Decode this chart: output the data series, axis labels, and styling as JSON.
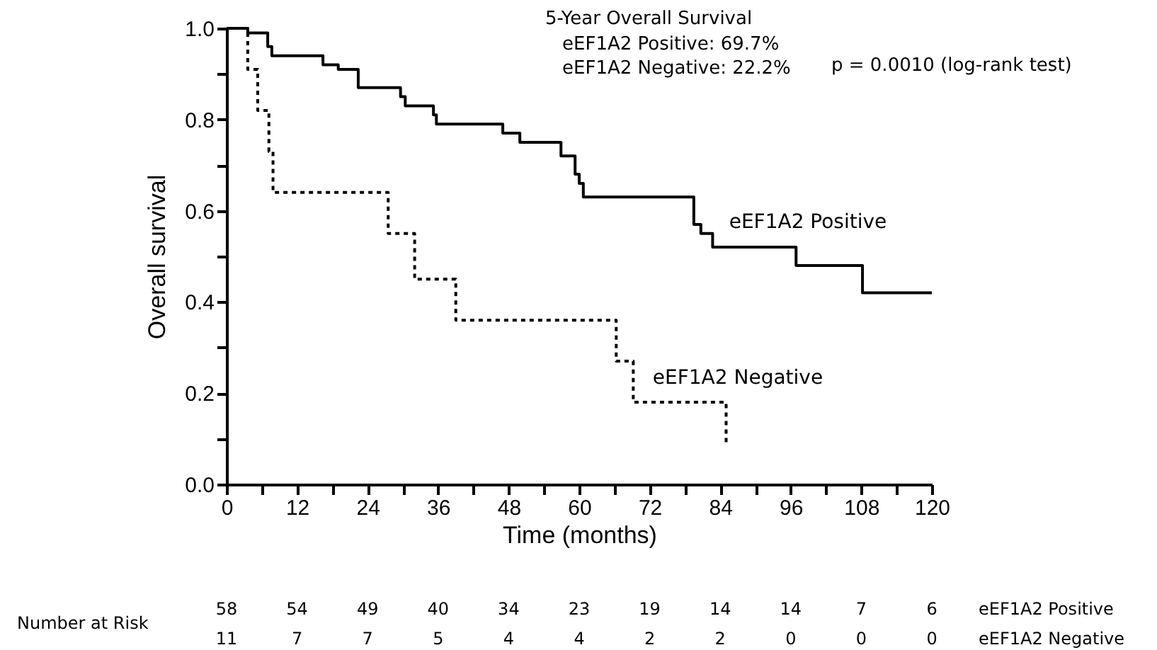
{
  "chart_data": {
    "type": "step",
    "xlabel": "Time (months)",
    "ylabel": "Overall survival",
    "xlim": [
      0,
      120
    ],
    "ylim": [
      0,
      1
    ],
    "xticks": [
      0,
      {
        "value": 6,
        "label": null
      },
      12,
      {
        "value": 18,
        "label": null
      },
      24,
      {
        "value": 30,
        "label": null
      },
      36,
      {
        "value": 42,
        "label": null
      },
      48,
      {
        "value": 54,
        "label": null
      },
      60,
      {
        "value": 66,
        "label": null
      },
      72,
      {
        "value": 78,
        "label": null
      },
      84,
      {
        "value": 90,
        "label": null
      },
      96,
      {
        "value": 102,
        "label": null
      },
      108,
      {
        "value": 114,
        "label": null
      },
      120
    ],
    "yticks": [
      {
        "value": 0,
        "label": "0.0"
      },
      {
        "value": 0.1,
        "label": null
      },
      0.2,
      {
        "value": 0.3,
        "label": null
      },
      0.4,
      {
        "value": 0.5,
        "label": null
      },
      0.6,
      {
        "value": 0.7,
        "label": null
      },
      0.8,
      {
        "value": 0.9,
        "label": null
      },
      {
        "value": 1,
        "label": "1.0"
      }
    ],
    "grid": false,
    "marker": "none",
    "series": [
      {
        "name": "eEF1A2 Positive",
        "color": "#000000",
        "line_style": "solid",
        "x": [
          0,
          3.6,
          7.0,
          7.7,
          16.4,
          19.0,
          22.4,
          29.6,
          30.4,
          35.2,
          35.7,
          47.0,
          49.9,
          56.9,
          59.3,
          60.0,
          60.7,
          79.5,
          80.7,
          82.7,
          96.9,
          108.2,
          120
        ],
        "values": [
          1.0,
          0.99,
          0.96,
          0.94,
          0.92,
          0.91,
          0.87,
          0.85,
          0.83,
          0.81,
          0.79,
          0.77,
          0.75,
          0.72,
          0.68,
          0.66,
          0.63,
          0.57,
          0.55,
          0.52,
          0.48,
          0.42,
          0.42
        ]
      },
      {
        "name": "eEF1A2 Negative",
        "color": "#000000",
        "line_style": "dotted",
        "x": [
          0,
          3.6,
          5.3,
          7.2,
          7.9,
          27.5,
          32.0,
          39.0,
          66.3,
          69.2,
          85
        ],
        "values": [
          1.0,
          0.91,
          0.82,
          0.73,
          0.64,
          0.55,
          0.45,
          0.36,
          0.27,
          0.18,
          0.09
        ]
      }
    ],
    "annotations": [
      "5-Year Overall Survival",
      "eEF1A2 Positive: 69.7%",
      "eEF1A2 Negative: 22.2%",
      "p = 0.0010 (log-rank test)",
      "Number at Risk",
      "58",
      "54",
      "49",
      "40",
      "34",
      "23",
      "19",
      "14",
      "14",
      "7",
      "6",
      "eEF1A2 Positive",
      "11",
      "7",
      "7",
      "5",
      "4",
      "4",
      "2",
      "2",
      "0",
      "0",
      "0",
      "eEF1A2 Negative"
    ]
  }
}
